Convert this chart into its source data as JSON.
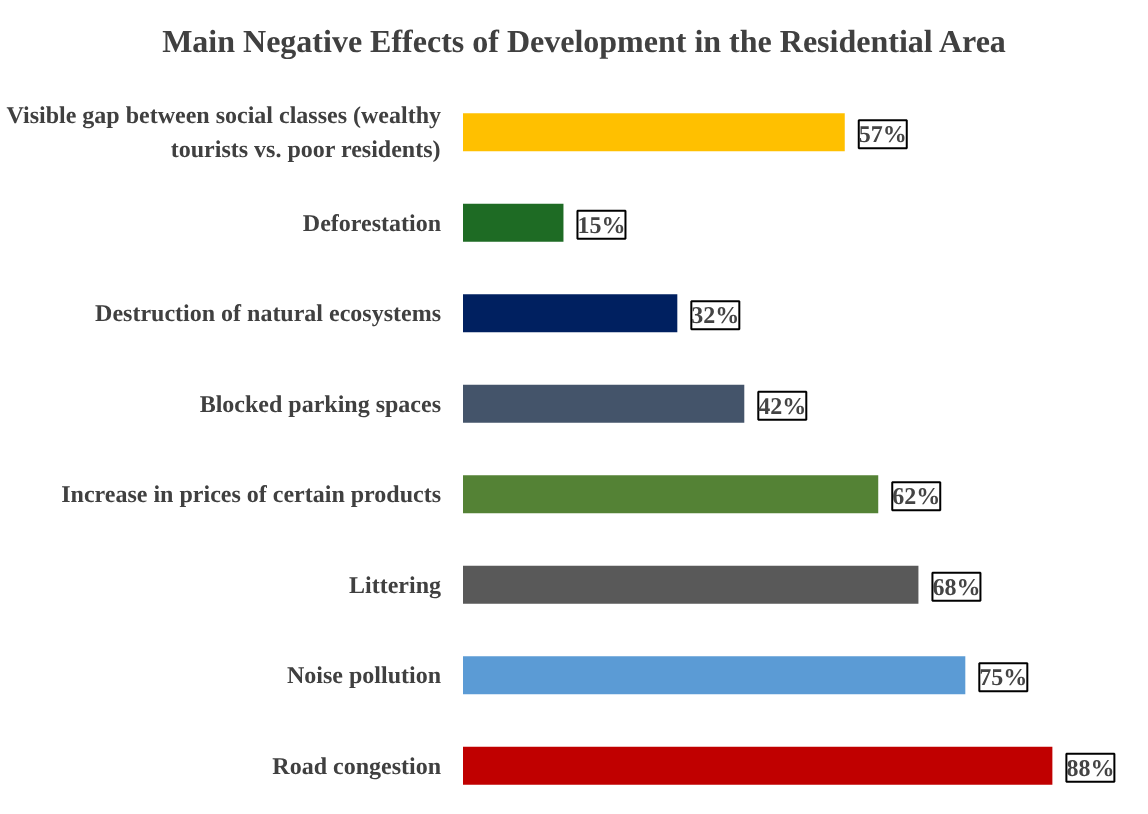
{
  "chart_data": {
    "type": "bar",
    "orientation": "horizontal",
    "title": "Main Negative Effects of Development in the Residential Area",
    "categories": [
      "Visible gap between social classes (wealthy tourists vs. poor residents)",
      "Deforestation",
      "Destruction of natural ecosystems",
      "Blocked parking spaces",
      "Increase in prices of certain products",
      "Littering",
      "Noise pollution",
      "Road congestion"
    ],
    "values": [
      57,
      15,
      32,
      42,
      62,
      68,
      75,
      88
    ],
    "colors": [
      "#ffc000",
      "#1e6b24",
      "#002060",
      "#44546a",
      "#548235",
      "#595959",
      "#5b9bd5",
      "#c00000"
    ],
    "value_labels": [
      "57%",
      "15%",
      "32%",
      "42%",
      "62%",
      "68%",
      "75%",
      "88%"
    ],
    "grid": false
  }
}
